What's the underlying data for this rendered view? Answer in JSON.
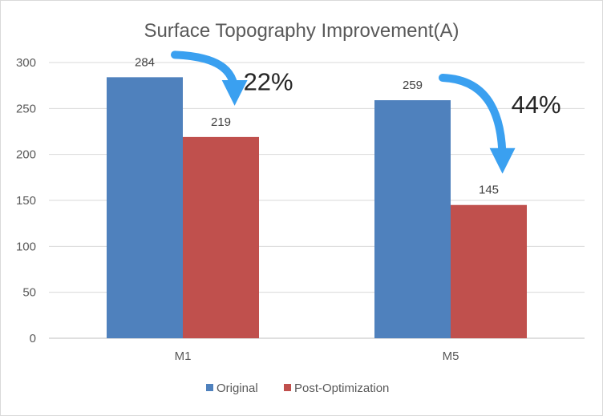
{
  "chart_data": {
    "type": "bar",
    "title": "Surface Topography Improvement(A)",
    "categories": [
      "M1",
      "M5"
    ],
    "series": [
      {
        "name": "Original",
        "values": [
          284,
          259
        ],
        "color": "#4f81bd"
      },
      {
        "name": "Post-Optimization",
        "values": [
          219,
          145
        ],
        "color": "#c0504d"
      }
    ],
    "yticks": [
      0,
      50,
      100,
      150,
      200,
      250,
      300
    ],
    "ylim": [
      0,
      300
    ],
    "grid": true,
    "legend": "bottom",
    "annotations": [
      {
        "category": "M1",
        "text": "22%",
        "arrow_color": "#3aa0f0"
      },
      {
        "category": "M5",
        "text": "44%",
        "arrow_color": "#3aa0f0"
      }
    ]
  }
}
